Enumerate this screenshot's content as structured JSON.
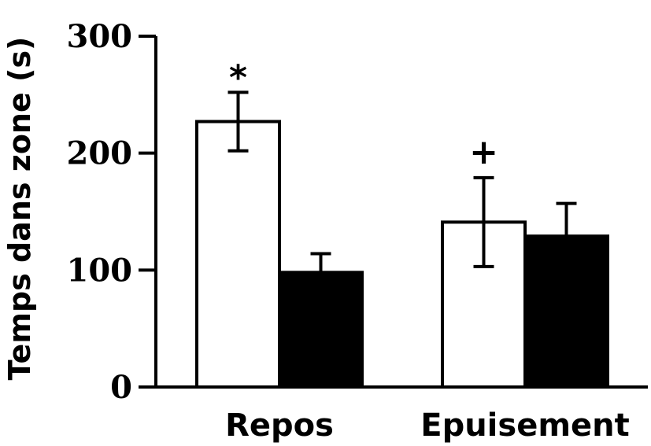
{
  "chart_data": {
    "type": "bar",
    "ylabel": "Temps dans zone (s)",
    "ylim": [
      0,
      300
    ],
    "yticks": [
      "0",
      "100",
      "200",
      "300"
    ],
    "categories": [
      "Repos",
      "Epuisement"
    ],
    "series": [
      {
        "fill": "#ffffff",
        "values": [
          227,
          141
        ],
        "errors": [
          25,
          38
        ]
      },
      {
        "fill": "#000000",
        "values": [
          98,
          129
        ],
        "errors": [
          16,
          28
        ]
      }
    ],
    "annotations": [
      {
        "text": "*",
        "category": 0,
        "series": 0
      },
      {
        "text": "+",
        "category": 1,
        "series": 0
      }
    ],
    "grid": false
  }
}
